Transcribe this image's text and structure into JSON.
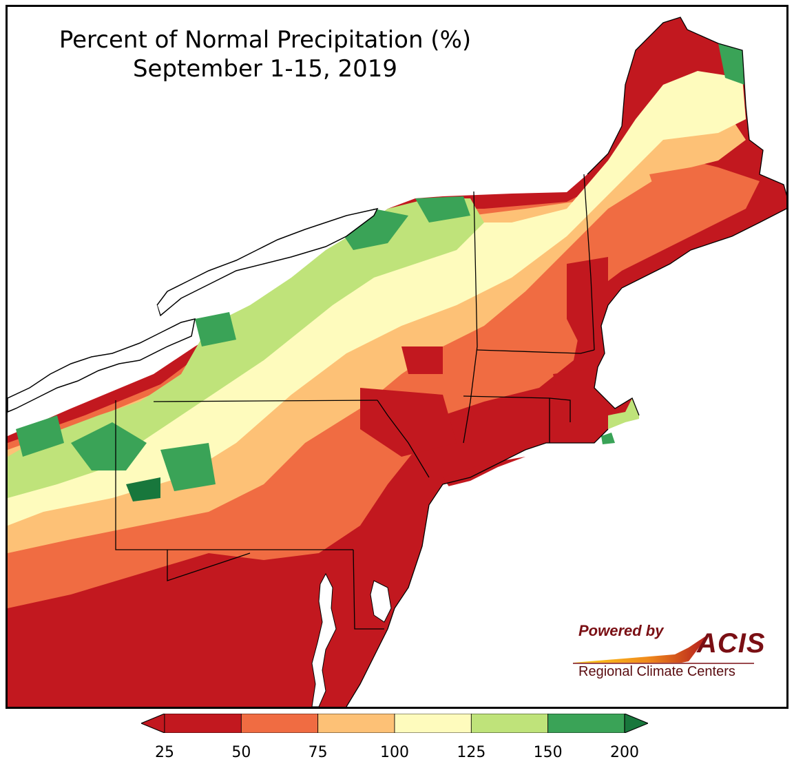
{
  "title_line1": "Percent of Normal Precipitation (%)",
  "title_line2": "September 1-15, 2019",
  "logo": {
    "powered_by": "Powered by",
    "name": "ACIS",
    "subtitle": "Regional Climate Centers",
    "brand_color": "#7a0f14"
  },
  "legend": {
    "ticks": [
      "25",
      "50",
      "75",
      "100",
      "125",
      "150",
      "200"
    ],
    "colors": [
      "#c2181f",
      "#f06c42",
      "#fdc176",
      "#fefbbd",
      "#bfe37a",
      "#3aa357"
    ],
    "under_color": "#c2181f",
    "over_color": "#18773c"
  },
  "map_colors": {
    "water": "#ffffff",
    "outline": "#000000",
    "county_lines": "#888888"
  }
}
